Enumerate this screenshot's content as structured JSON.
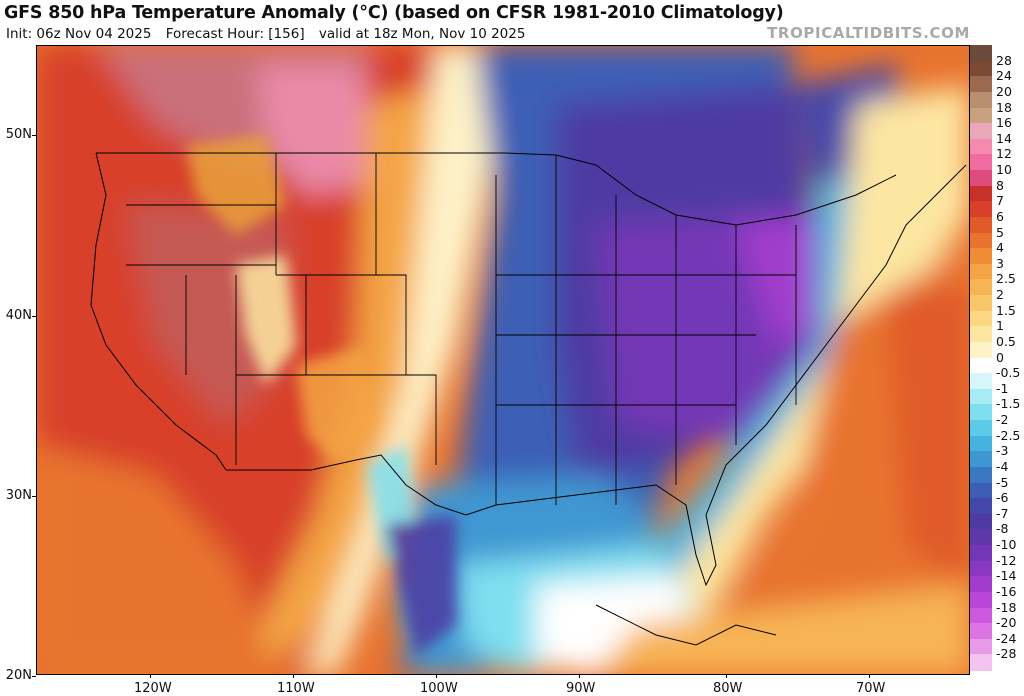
{
  "header": {
    "title": "GFS 850 hPa Temperature Anomaly (°C) (based on CFSR 1981-2010 Climatology)",
    "init": "Init: 06z Nov 04 2025",
    "forecast_hour": "Forecast Hour: [156]",
    "valid": "valid at 18z Mon, Nov 10 2025",
    "brand": "TROPICALTIDBITS.COM"
  },
  "axes": {
    "lat_labels": [
      "50N",
      "40N",
      "30N",
      "20N"
    ],
    "lon_labels": [
      "120W",
      "110W",
      "100W",
      "90W",
      "80W",
      "70W"
    ]
  },
  "colorbar": {
    "labels": [
      "28",
      "24",
      "20",
      "18",
      "16",
      "14",
      "12",
      "10",
      "8",
      "7",
      "6",
      "5",
      "4",
      "3",
      "2.5",
      "2",
      "1.5",
      "1",
      "0.5",
      "0",
      "-0.5",
      "-1",
      "-1.5",
      "-2",
      "-2.5",
      "-3",
      "-4",
      "-5",
      "-6",
      "-7",
      "-8",
      "-10",
      "-12",
      "-14",
      "-16",
      "-18",
      "-20",
      "-24",
      "-28"
    ],
    "colors": [
      "#7a4a32",
      "#9a6a50",
      "#b8906f",
      "#c9a080",
      "#e9a8b8",
      "#f48ab0",
      "#f06ca0",
      "#e04b7e",
      "#c8302a",
      "#d8402b",
      "#e05a2a",
      "#e8732e",
      "#ef8c36",
      "#f4a445",
      "#f7b455",
      "#f9c66b",
      "#fbd784",
      "#fde6a2",
      "#fef2c8",
      "#ffffff",
      "#d6f6fb",
      "#a7ecf5",
      "#7fdff0",
      "#5ccbe8",
      "#46b3de",
      "#3f97d1",
      "#3a78c2",
      "#3c5eb5",
      "#4448aa",
      "#4e3aa3",
      "#5f37ab",
      "#7337b5",
      "#8a38c1",
      "#a23ccc",
      "#b946d6",
      "#cc58de",
      "#dc74e3",
      "#e89ae8",
      "#f4c4f0"
    ]
  }
}
